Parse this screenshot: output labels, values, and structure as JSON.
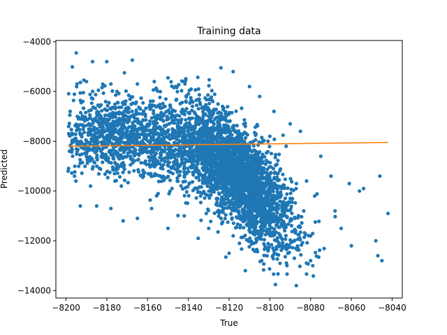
{
  "chart_data": {
    "type": "scatter",
    "title": "Training data",
    "xlabel": "True",
    "ylabel": "Predicted",
    "xlim": [
      -8205,
      -8035
    ],
    "ylim": [
      -14300,
      -3950
    ],
    "xticks": [
      -8200,
      -8180,
      -8160,
      -8140,
      -8120,
      -8100,
      -8080,
      -8060,
      -8040
    ],
    "yticks": [
      -14000,
      -12000,
      -10000,
      -8000,
      -6000,
      -4000
    ],
    "grid": false,
    "series": [
      {
        "kind": "scatter",
        "color": "#1f77b4",
        "values": [
          [
            -8195,
            -4450
          ],
          [
            -8187,
            -4800
          ],
          [
            -8180,
            -4800
          ],
          [
            -8124,
            -5050
          ],
          [
            -8150,
            -5450
          ],
          [
            -8165,
            -5700
          ],
          [
            -8135,
            -5900
          ],
          [
            -8118,
            -5200
          ],
          [
            -8110,
            -5800
          ],
          [
            -8190,
            -5600
          ],
          [
            -8175,
            -6000
          ],
          [
            -8140,
            -6100
          ],
          [
            -8128,
            -6400
          ],
          [
            -8105,
            -6200
          ],
          [
            -8098,
            -6800
          ],
          [
            -8090,
            -7300
          ],
          [
            -8198,
            -6800
          ],
          [
            -8185,
            -7200
          ],
          [
            -8170,
            -7500
          ],
          [
            -8155,
            -7000
          ],
          [
            -8145,
            -7600
          ],
          [
            -8130,
            -7000
          ],
          [
            -8120,
            -7200
          ],
          [
            -8112,
            -7400
          ],
          [
            -8100,
            -7800
          ],
          [
            -8085,
            -7600
          ],
          [
            -8075,
            -8600
          ],
          [
            -8092,
            -8200
          ],
          [
            -8196,
            -8000
          ],
          [
            -8182,
            -8300
          ],
          [
            -8168,
            -8700
          ],
          [
            -8152,
            -8100
          ],
          [
            -8138,
            -8900
          ],
          [
            -8126,
            -8500
          ],
          [
            -8116,
            -8800
          ],
          [
            -8106,
            -9100
          ],
          [
            -8096,
            -9300
          ],
          [
            -8082,
            -9600
          ],
          [
            -8070,
            -9400
          ],
          [
            -8199,
            -9200
          ],
          [
            -8188,
            -9800
          ],
          [
            -8176,
            -9600
          ],
          [
            -8162,
            -9400
          ],
          [
            -8148,
            -9900
          ],
          [
            -8134,
            -10200
          ],
          [
            -8122,
            -10000
          ],
          [
            -8110,
            -10400
          ],
          [
            -8100,
            -10800
          ],
          [
            -8090,
            -10300
          ],
          [
            -8078,
            -10200
          ],
          [
            -8068,
            -10800
          ],
          [
            -8193,
            -10600
          ],
          [
            -8172,
            -11200
          ],
          [
            -8158,
            -10700
          ],
          [
            -8142,
            -11000
          ],
          [
            -8130,
            -11500
          ],
          [
            -8118,
            -11800
          ],
          [
            -8108,
            -12100
          ],
          [
            -8098,
            -12400
          ],
          [
            -8088,
            -12700
          ],
          [
            -8080,
            -11800
          ],
          [
            -8065,
            -11500
          ],
          [
            -8048,
            -12000
          ],
          [
            -8045,
            -12800
          ],
          [
            -8047,
            -12600
          ],
          [
            -8042,
            -10900
          ],
          [
            -8060,
            -12200
          ],
          [
            -8056,
            -10000
          ],
          [
            -8046,
            -9400
          ],
          [
            -8061,
            -9700
          ],
          [
            -8054,
            -9900
          ],
          [
            -8087,
            -13800
          ],
          [
            -8112,
            -13200
          ],
          [
            -8104,
            -12800
          ],
          [
            -8120,
            -12500
          ],
          [
            -8080,
            -12800
          ],
          [
            -8150,
            -11500
          ],
          [
            -8165,
            -11100
          ],
          [
            -8185,
            -10600
          ],
          [
            -8178,
            -10700
          ],
          [
            -8125,
            -7800
          ],
          [
            -8118,
            -8200
          ],
          [
            -8112,
            -9000
          ],
          [
            -8108,
            -9800
          ],
          [
            -8120,
            -9300
          ],
          [
            -8115,
            -10200
          ],
          [
            -8105,
            -10800
          ],
          [
            -8110,
            -11200
          ],
          [
            -8128,
            -8600
          ],
          [
            -8132,
            -9600
          ],
          [
            -8102,
            -11600
          ],
          [
            -8096,
            -10100
          ]
        ]
      },
      {
        "kind": "line",
        "color": "#ff7f0e",
        "values": [
          [
            -8199,
            -8200
          ],
          [
            -8042,
            -8050
          ]
        ]
      }
    ],
    "dense_cloud": [
      {
        "cx": -8115,
        "cy": -9400,
        "sx": 13,
        "sy": 1400,
        "n": 2600,
        "slope": -80
      },
      {
        "cx": -8150,
        "cy": -8200,
        "sx": 24,
        "sy": 1100,
        "n": 1200,
        "slope": -30
      },
      {
        "cx": -8180,
        "cy": -8000,
        "sx": 12,
        "sy": 900,
        "n": 500,
        "slope": 0
      }
    ]
  }
}
